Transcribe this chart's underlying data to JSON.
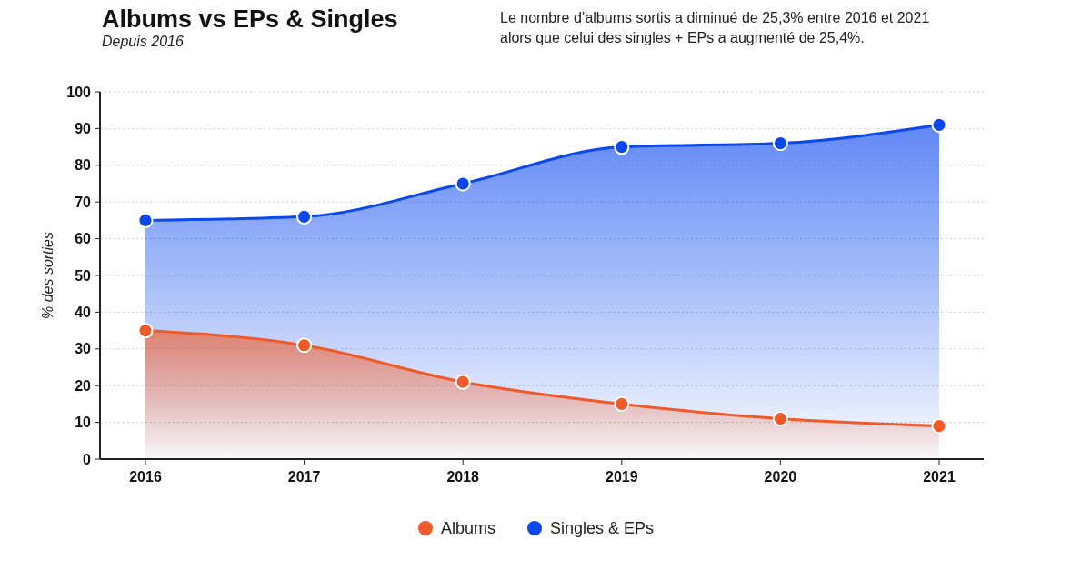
{
  "chart_data": {
    "type": "area",
    "title": "Albums vs EPs & Singles",
    "subtitle": "Depuis 2016",
    "ylabel": "% des sorties",
    "annotations": [
      "Le nombre d’albums sortis a diminué de 25,3% entre 2016 et 2021",
      "alors que celui des singles + EPs a augmenté de 25,4%."
    ],
    "categories": [
      "2016",
      "2017",
      "2018",
      "2019",
      "2020",
      "2021"
    ],
    "series": [
      {
        "name": "Albums",
        "color": "#f05a28",
        "values": [
          35,
          31,
          21,
          15,
          11,
          9
        ]
      },
      {
        "name": "Singles & EPs",
        "color": "#0a47f0",
        "values": [
          65,
          66,
          75,
          85,
          86,
          91
        ]
      }
    ],
    "ylim": [
      0,
      100
    ],
    "yticks": [
      0,
      10,
      20,
      30,
      40,
      50,
      60,
      70,
      80,
      90,
      100
    ],
    "grid": "y",
    "legend": "bottom",
    "marker": "circle"
  }
}
